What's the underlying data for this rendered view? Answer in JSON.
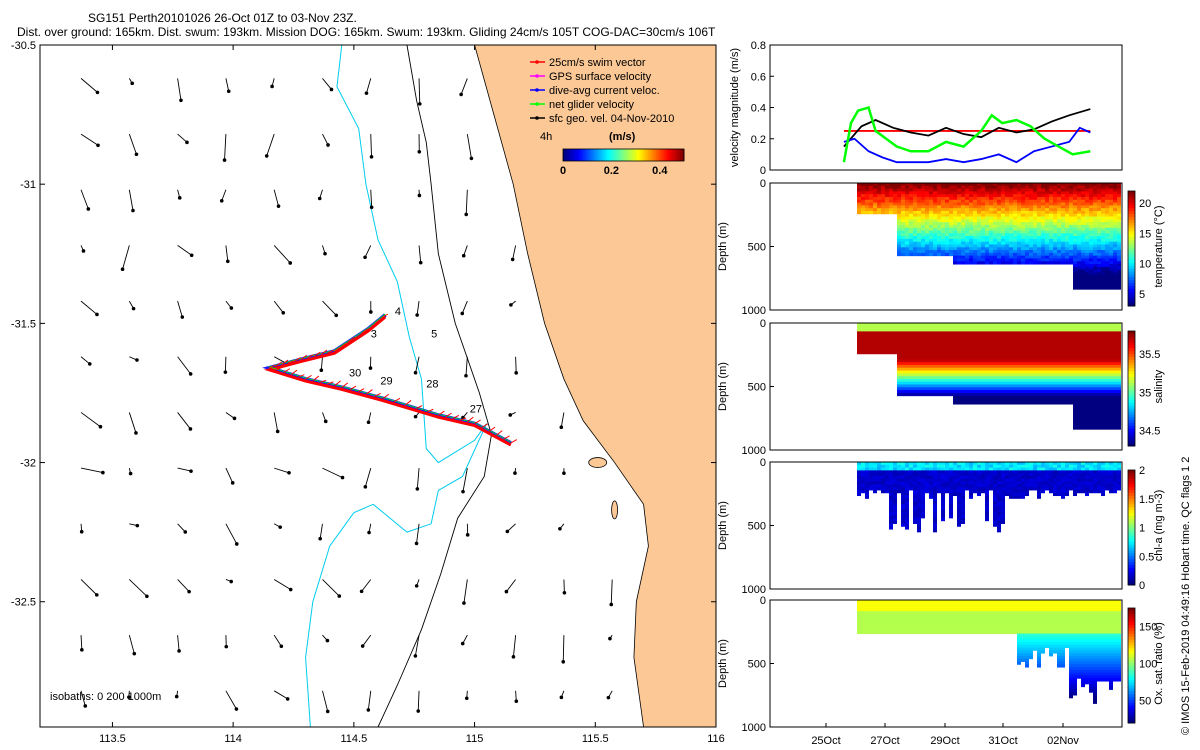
{
  "header": {
    "title_line1": "SG151 Perth20101026 26-Oct 01Z to 03-Nov 23Z.",
    "title_line2": "Dist. over ground: 165km. Dist. swum: 193km. Mission DOG: 165km. Swum: 193km. Gliding 24cm/s 105T COG-DAC=30cm/s 106T"
  },
  "footer": {
    "credit": "© IMOS 15-Feb-2019 04:49:16 Hobart time. QC flags 1  2"
  },
  "colors": {
    "land": "#fbc896",
    "contour_cyan": "#00ccee",
    "swim": "#ff0000",
    "gps": "#ff00ff",
    "dac": "#0000ff",
    "net": "#00ff00",
    "geo": "#000000"
  },
  "chart_data": [
    {
      "id": "map",
      "type": "scatter",
      "title": "",
      "xlabel": "",
      "ylabel": "",
      "xlim": [
        113.2,
        116.0
      ],
      "ylim": [
        -32.95,
        -30.5
      ],
      "xticks": [
        113.5,
        114,
        114.5,
        115,
        115.5,
        116
      ],
      "xtick_labels": [
        "113.5",
        "114",
        "114.5",
        "115",
        "115.5",
        "116"
      ],
      "yticks": [
        -30.5,
        -31,
        -31.5,
        -32,
        -32.5
      ],
      "ytick_labels": [
        "-30.5",
        "-31",
        "-31.5",
        "-32",
        "-32.5"
      ],
      "legend": {
        "placement": "top-right",
        "entries": [
          {
            "label": "25cm/s swim vector",
            "color": "#ff0000"
          },
          {
            "label": "GPS surface velocity",
            "color": "#ff00ff"
          },
          {
            "label": "dive-avg current veloc.",
            "color": "#0000ff"
          },
          {
            "label": "net glider velocity",
            "color": "#00ff00"
          },
          {
            "label": "sfc geo. vel. 04-Nov-2010",
            "color": "#000000"
          }
        ]
      },
      "colorbar": {
        "label": "(m/s)",
        "note": "4h",
        "tick_labels": [
          "0",
          "0.2",
          "0.4"
        ],
        "range": [
          0,
          0.5
        ]
      },
      "isobaths_label": "isobaths: 0  200  1000m",
      "track": [
        [
          115.15,
          -31.93
        ],
        [
          115.0,
          -31.86
        ],
        [
          114.85,
          -31.83
        ],
        [
          114.62,
          -31.77
        ],
        [
          114.45,
          -31.73
        ],
        [
          114.3,
          -31.7
        ],
        [
          114.15,
          -31.66
        ],
        [
          114.28,
          -31.63
        ],
        [
          114.42,
          -31.6
        ],
        [
          114.56,
          -31.52
        ],
        [
          114.63,
          -31.47
        ]
      ],
      "annotations": [
        {
          "text": "4",
          "x": 114.67,
          "y": -31.47
        },
        {
          "text": "3",
          "x": 114.57,
          "y": -31.55
        },
        {
          "text": "5",
          "x": 114.82,
          "y": -31.55
        },
        {
          "text": "30",
          "x": 114.48,
          "y": -31.69
        },
        {
          "text": "29",
          "x": 114.61,
          "y": -31.72
        },
        {
          "text": "28",
          "x": 114.8,
          "y": -31.73
        },
        {
          "text": "27",
          "x": 114.98,
          "y": -31.82
        }
      ]
    },
    {
      "id": "velocity",
      "type": "line",
      "ylabel": "velocity magnitude (m/s)",
      "xlim": [
        0,
        10
      ],
      "ylim": [
        0,
        0.8
      ],
      "yticks": [
        0,
        0.2,
        0.4,
        0.6,
        0.8
      ],
      "ytick_labels": [
        "0",
        "0.2",
        "0.4",
        "0.6",
        "0.8"
      ],
      "series": [
        {
          "name": "swim",
          "color": "#ff0000",
          "x": [
            2.1,
            9.1
          ],
          "values": [
            0.25,
            0.25
          ]
        },
        {
          "name": "sfc geo",
          "color": "#000000",
          "x": [
            2.1,
            2.6,
            3.0,
            3.5,
            4.0,
            4.5,
            5.0,
            5.5,
            6.0,
            6.5,
            7.0,
            7.5,
            8.0,
            8.5,
            9.1
          ],
          "values": [
            0.15,
            0.28,
            0.32,
            0.27,
            0.24,
            0.22,
            0.27,
            0.23,
            0.21,
            0.27,
            0.24,
            0.26,
            0.31,
            0.35,
            0.39
          ]
        },
        {
          "name": "dive-avg current",
          "color": "#0000ff",
          "x": [
            2.1,
            2.4,
            2.8,
            3.2,
            3.6,
            4.0,
            4.5,
            5.0,
            5.5,
            6.0,
            6.5,
            7.0,
            7.5,
            8.0,
            8.5,
            8.8,
            9.1
          ],
          "values": [
            0.18,
            0.2,
            0.12,
            0.08,
            0.05,
            0.05,
            0.05,
            0.07,
            0.05,
            0.07,
            0.1,
            0.05,
            0.12,
            0.15,
            0.18,
            0.27,
            0.24
          ]
        },
        {
          "name": "net glider",
          "color": "#00ff00",
          "x": [
            2.1,
            2.3,
            2.5,
            2.8,
            3.0,
            3.3,
            3.6,
            4.0,
            4.5,
            5.0,
            5.5,
            6.0,
            6.3,
            6.6,
            7.0,
            7.4,
            7.8,
            8.2,
            8.6,
            9.1
          ],
          "values": [
            0.05,
            0.3,
            0.38,
            0.4,
            0.25,
            0.2,
            0.15,
            0.12,
            0.12,
            0.18,
            0.15,
            0.25,
            0.35,
            0.3,
            0.32,
            0.28,
            0.2,
            0.15,
            0.1,
            0.12
          ]
        }
      ]
    },
    {
      "id": "temperature",
      "type": "heatmap",
      "ylabel": "Depth (m)",
      "colorbar_label": "temperature (°C)",
      "ylim": [
        1000,
        0
      ],
      "yticks": [
        0,
        500,
        1000
      ],
      "ytick_labels": [
        "0",
        "500",
        "1000"
      ],
      "colorbar_ticks": [
        "5",
        "10",
        "15",
        "20"
      ],
      "colorbar_range": [
        3,
        22
      ]
    },
    {
      "id": "salinity",
      "type": "heatmap",
      "ylabel": "Depth (m)",
      "colorbar_label": "salinity",
      "ylim": [
        1000,
        0
      ],
      "yticks": [
        0,
        500,
        1000
      ],
      "ytick_labels": [
        "0",
        "500",
        "1000"
      ],
      "colorbar_ticks": [
        "34.5",
        "35",
        "35.5"
      ],
      "colorbar_range": [
        34.3,
        35.8
      ]
    },
    {
      "id": "chla",
      "type": "heatmap",
      "ylabel": "Depth (m)",
      "colorbar_label": "chl-a (mg m-3)",
      "ylim": [
        1000,
        0
      ],
      "yticks": [
        0,
        500,
        1000
      ],
      "ytick_labels": [
        "0",
        "500",
        "1000"
      ],
      "colorbar_ticks": [
        "0",
        "0.5",
        "1",
        "1.5",
        "2"
      ],
      "colorbar_range": [
        0,
        2
      ]
    },
    {
      "id": "oxygen",
      "type": "heatmap",
      "ylabel": "Depth (m)",
      "colorbar_label": "Ox. sat. ratio (%)",
      "ylim": [
        1000,
        0
      ],
      "yticks": [
        0,
        500,
        1000
      ],
      "ytick_labels": [
        "0",
        "500",
        "1000"
      ],
      "colorbar_ticks": [
        "50",
        "100",
        "150"
      ],
      "colorbar_range": [
        20,
        175
      ],
      "xtick_labels": [
        "25Oct",
        "27Oct",
        "29Oct",
        "31Oct",
        "02Nov"
      ]
    }
  ]
}
